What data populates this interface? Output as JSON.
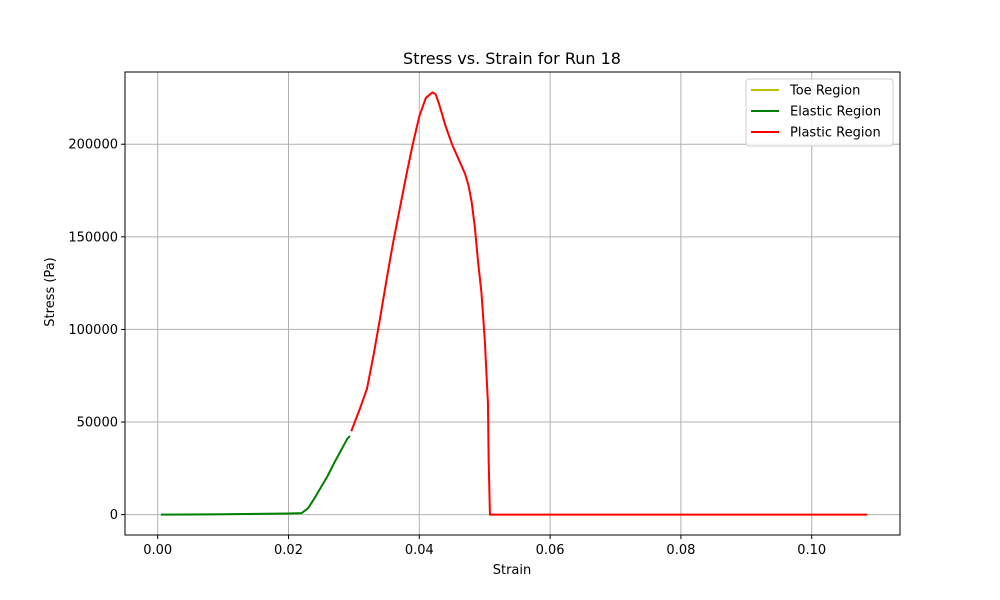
{
  "chart_data": {
    "type": "line",
    "title": "Stress vs. Strain for Run 18",
    "xlabel": "Strain",
    "ylabel": "Stress (Pa)",
    "xlim": [
      -0.005,
      0.1135
    ],
    "ylim": [
      -11000,
      239000
    ],
    "xticks": [
      0.0,
      0.02,
      0.04,
      0.06,
      0.08,
      0.1
    ],
    "xtick_labels": [
      "0.00",
      "0.02",
      "0.04",
      "0.06",
      "0.08",
      "0.10"
    ],
    "yticks": [
      0,
      50000,
      100000,
      150000,
      200000
    ],
    "ytick_labels": [
      "0",
      "50000",
      "100000",
      "150000",
      "200000"
    ],
    "grid": true,
    "legend_position": "top-right",
    "series": [
      {
        "name": "Toe Region",
        "color": "#bfbf00",
        "x": [],
        "y": []
      },
      {
        "name": "Elastic Region",
        "color": "#008000",
        "x": [
          0.0005,
          0.005,
          0.01,
          0.015,
          0.02,
          0.022,
          0.023,
          0.024,
          0.025,
          0.026,
          0.027,
          0.028,
          0.029,
          0.0294
        ],
        "y": [
          0,
          100,
          200,
          400,
          600,
          800,
          3500,
          9000,
          15000,
          21000,
          28000,
          34500,
          41000,
          42500
        ]
      },
      {
        "name": "Plastic Region",
        "color": "#ff0000",
        "x": [
          0.0296,
          0.031,
          0.032,
          0.033,
          0.034,
          0.035,
          0.036,
          0.037,
          0.038,
          0.039,
          0.04,
          0.041,
          0.042,
          0.0425,
          0.043,
          0.044,
          0.045,
          0.046,
          0.047,
          0.0475,
          0.048,
          0.0485,
          0.049,
          0.0495,
          0.05,
          0.0505,
          0.0506,
          0.0508,
          0.051,
          0.06,
          0.08,
          0.1085
        ],
        "y": [
          45000,
          58000,
          68000,
          86000,
          106000,
          127000,
          147000,
          165000,
          183000,
          200000,
          215000,
          225000,
          228000,
          227000,
          222000,
          210000,
          200000,
          192000,
          184000,
          178000,
          169000,
          155000,
          136000,
          120000,
          95000,
          60000,
          30000,
          0,
          0,
          0,
          0,
          0
        ]
      }
    ]
  }
}
